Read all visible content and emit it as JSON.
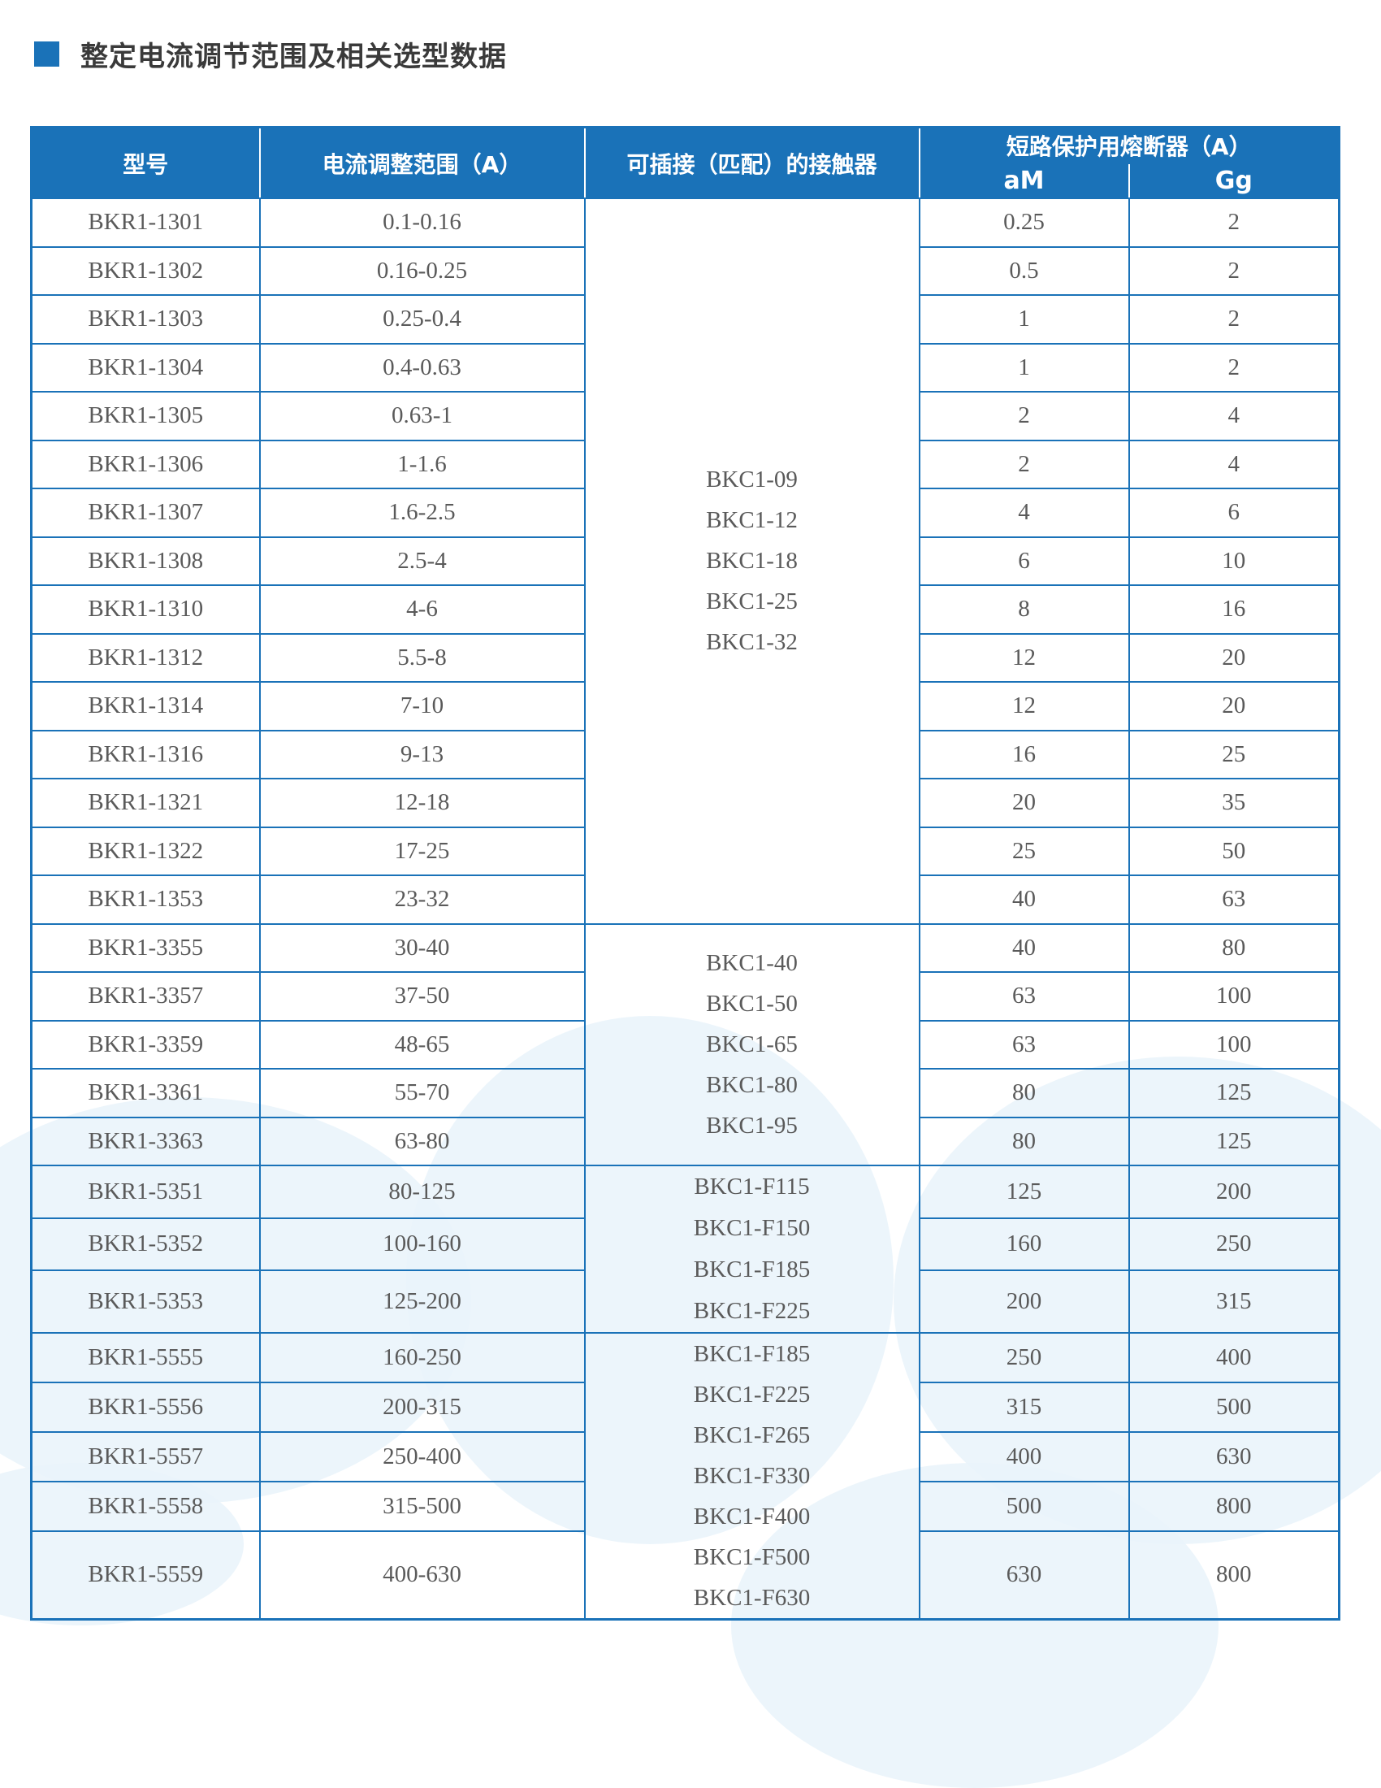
{
  "title": "整定电流调节范围及相关选型数据",
  "colors": {
    "accent": "#1a72b8",
    "text": "#5a5a5a"
  },
  "headers": {
    "model": "型号",
    "range": "电流调整范围（A）",
    "contactor": "可插接（匹配）的接触器",
    "fuse": "短路保护用熔断器（A）",
    "am": "aM",
    "gg": "Gg"
  },
  "rows": [
    {
      "model": "BKR1-1301",
      "range": "0.1-0.16",
      "am": "0.25",
      "gg": "2"
    },
    {
      "model": "BKR1-1302",
      "range": "0.16-0.25",
      "am": "0.5",
      "gg": "2"
    },
    {
      "model": "BKR1-1303",
      "range": "0.25-0.4",
      "am": "1",
      "gg": "2"
    },
    {
      "model": "BKR1-1304",
      "range": "0.4-0.63",
      "am": "1",
      "gg": "2"
    },
    {
      "model": "BKR1-1305",
      "range": "0.63-1",
      "am": "2",
      "gg": "4"
    },
    {
      "model": "BKR1-1306",
      "range": "1-1.6",
      "am": "2",
      "gg": "4"
    },
    {
      "model": "BKR1-1307",
      "range": "1.6-2.5",
      "am": "4",
      "gg": "6"
    },
    {
      "model": "BKR1-1308",
      "range": "2.5-4",
      "am": "6",
      "gg": "10"
    },
    {
      "model": "BKR1-1310",
      "range": "4-6",
      "am": "8",
      "gg": "16"
    },
    {
      "model": "BKR1-1312",
      "range": "5.5-8",
      "am": "12",
      "gg": "20"
    },
    {
      "model": "BKR1-1314",
      "range": "7-10",
      "am": "12",
      "gg": "20"
    },
    {
      "model": "BKR1-1316",
      "range": "9-13",
      "am": "16",
      "gg": "25"
    },
    {
      "model": "BKR1-1321",
      "range": "12-18",
      "am": "20",
      "gg": "35"
    },
    {
      "model": "BKR1-1322",
      "range": "17-25",
      "am": "25",
      "gg": "50"
    },
    {
      "model": "BKR1-1353",
      "range": "23-32",
      "am": "40",
      "gg": "63"
    },
    {
      "model": "BKR1-3355",
      "range": "30-40",
      "am": "40",
      "gg": "80"
    },
    {
      "model": "BKR1-3357",
      "range": "37-50",
      "am": "63",
      "gg": "100"
    },
    {
      "model": "BKR1-3359",
      "range": "48-65",
      "am": "63",
      "gg": "100"
    },
    {
      "model": "BKR1-3361",
      "range": "55-70",
      "am": "80",
      "gg": "125"
    },
    {
      "model": "BKR1-3363",
      "range": "63-80",
      "am": "80",
      "gg": "125"
    },
    {
      "model": "BKR1-5351",
      "range": "80-125",
      "am": "125",
      "gg": "200"
    },
    {
      "model": "BKR1-5352",
      "range": "100-160",
      "am": "160",
      "gg": "250"
    },
    {
      "model": "BKR1-5353",
      "range": "125-200",
      "am": "200",
      "gg": "315"
    },
    {
      "model": "BKR1-5555",
      "range": "160-250",
      "am": "250",
      "gg": "400"
    },
    {
      "model": "BKR1-5556",
      "range": "200-315",
      "am": "315",
      "gg": "500"
    },
    {
      "model": "BKR1-5557",
      "range": "250-400",
      "am": "400",
      "gg": "630"
    },
    {
      "model": "BKR1-5558",
      "range": "315-500",
      "am": "500",
      "gg": "800"
    },
    {
      "model": "BKR1-5559",
      "range": "400-630",
      "am": "630",
      "gg": "800"
    }
  ],
  "contactor_groups": [
    {
      "rows": 15,
      "items": [
        "BKC1-09",
        "BKC1-12",
        "BKC1-18",
        "BKC1-25",
        "BKC1-32"
      ]
    },
    {
      "rows": 5,
      "items": [
        "BKC1-40",
        "BKC1-50",
        "BKC1-65",
        "BKC1-80",
        "BKC1-95"
      ]
    },
    {
      "rows": 3,
      "items": [
        "BKC1-F115",
        "BKC1-F150",
        "BKC1-F185",
        "BKC1-F225"
      ]
    },
    {
      "rows": 5,
      "items": [
        "BKC1-F185",
        "BKC1-F225",
        "BKC1-F265",
        "BKC1-F330",
        "BKC1-F400",
        "BKC1-F500",
        "BKC1-F630"
      ]
    }
  ]
}
